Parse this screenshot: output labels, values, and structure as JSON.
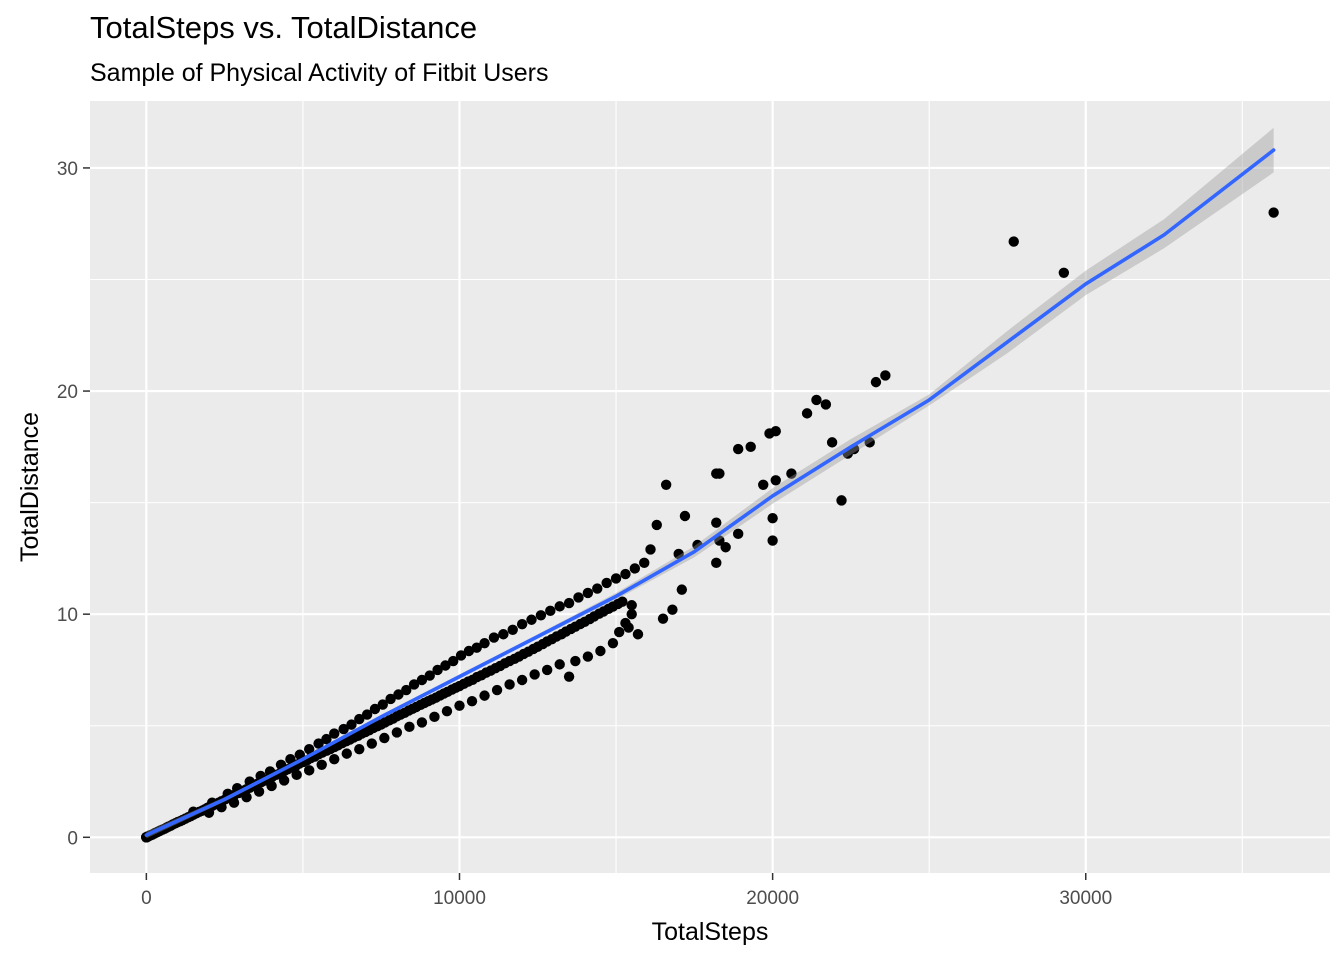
{
  "chart_data": {
    "type": "scatter",
    "title": "TotalSteps vs. TotalDistance",
    "subtitle": "Sample of Physical Activity of Fitbit Users",
    "xlabel": "TotalSteps",
    "ylabel": "TotalDistance",
    "xlim": [
      -1800,
      37800
    ],
    "ylim": [
      -1.6,
      33.0
    ],
    "x_ticks": [
      0,
      10000,
      20000,
      30000
    ],
    "x_tick_labels": [
      "0",
      "10000",
      "20000",
      "30000"
    ],
    "y_ticks": [
      0,
      10,
      20,
      30
    ],
    "y_tick_labels": [
      "0",
      "10",
      "20",
      "30"
    ],
    "grid": true,
    "legend": "none",
    "colors": {
      "panel_background": "#EBEBEB",
      "grid": "#FFFFFF",
      "points": "#000000",
      "smooth_line": "#3366FF",
      "confidence_band": "#999999",
      "tick_labels": "#4D4D4D"
    },
    "series": [
      {
        "type": "scatter",
        "points": [
          [
            0,
            0
          ],
          [
            0,
            0
          ],
          [
            0,
            0
          ],
          [
            0,
            0
          ],
          [
            0,
            0
          ],
          [
            0,
            0
          ],
          [
            0,
            0
          ],
          [
            0,
            0
          ],
          [
            4,
            0
          ],
          [
            8,
            0.01
          ],
          [
            15,
            0.01
          ],
          [
            29,
            0.02
          ],
          [
            36,
            0.03
          ],
          [
            42,
            0.03
          ],
          [
            58,
            0.04
          ],
          [
            98,
            0.07
          ],
          [
            111,
            0.08
          ],
          [
            152,
            0.1
          ],
          [
            200,
            0.13
          ],
          [
            243,
            0.16
          ],
          [
            266,
            0.18
          ],
          [
            300,
            0.2
          ],
          [
            356,
            0.24
          ],
          [
            403,
            0.27
          ],
          [
            445,
            0.3
          ],
          [
            511,
            0.34
          ],
          [
            580,
            0.38
          ],
          [
            655,
            0.44
          ],
          [
            712,
            0.48
          ],
          [
            780,
            0.52
          ],
          [
            852,
            0.58
          ],
          [
            930,
            0.63
          ],
          [
            1001,
            0.68
          ],
          [
            1080,
            0.72
          ],
          [
            1160,
            0.78
          ],
          [
            1250,
            0.84
          ],
          [
            1340,
            0.9
          ],
          [
            1420,
            0.95
          ],
          [
            1510,
            1.02
          ],
          [
            1600,
            1.08
          ],
          [
            1690,
            1.14
          ],
          [
            1780,
            1.19
          ],
          [
            1860,
            1.25
          ],
          [
            1950,
            1.32
          ],
          [
            2030,
            1.38
          ],
          [
            2120,
            1.42
          ],
          [
            2200,
            1.48
          ],
          [
            2310,
            1.55
          ],
          [
            2400,
            1.62
          ],
          [
            2520,
            1.7
          ],
          [
            2610,
            1.78
          ],
          [
            2700,
            1.82
          ],
          [
            2810,
            1.9
          ],
          [
            2950,
            1.99
          ],
          [
            3080,
            2.08
          ],
          [
            3190,
            2.15
          ],
          [
            3300,
            2.22
          ],
          [
            3420,
            2.3
          ],
          [
            3550,
            2.4
          ],
          [
            3680,
            2.48
          ],
          [
            3790,
            2.55
          ],
          [
            3900,
            2.62
          ],
          [
            4010,
            2.7
          ],
          [
            4150,
            2.8
          ],
          [
            4280,
            2.88
          ],
          [
            4400,
            2.97
          ],
          [
            4520,
            3.05
          ],
          [
            4650,
            3.13
          ],
          [
            4770,
            3.2
          ],
          [
            4880,
            3.3
          ],
          [
            5010,
            3.38
          ],
          [
            5130,
            3.45
          ],
          [
            5250,
            3.55
          ],
          [
            5380,
            3.62
          ],
          [
            5500,
            3.72
          ],
          [
            5620,
            3.8
          ],
          [
            5760,
            3.88
          ],
          [
            5880,
            3.96
          ],
          [
            6010,
            4.05
          ],
          [
            6120,
            4.12
          ],
          [
            6250,
            4.22
          ],
          [
            6380,
            4.3
          ],
          [
            6500,
            4.38
          ],
          [
            6620,
            4.47
          ],
          [
            6760,
            4.55
          ],
          [
            6880,
            4.65
          ],
          [
            7000,
            4.72
          ],
          [
            7120,
            4.8
          ],
          [
            7250,
            4.9
          ],
          [
            7380,
            4.98
          ],
          [
            7500,
            5.06
          ],
          [
            7620,
            5.15
          ],
          [
            7760,
            5.24
          ],
          [
            7880,
            5.32
          ],
          [
            8000,
            5.42
          ],
          [
            8120,
            5.5
          ],
          [
            8250,
            5.58
          ],
          [
            8380,
            5.68
          ],
          [
            8500,
            5.76
          ],
          [
            8620,
            5.84
          ],
          [
            8760,
            5.94
          ],
          [
            8880,
            6.02
          ],
          [
            9000,
            6.1
          ],
          [
            9120,
            6.18
          ],
          [
            9250,
            6.26
          ],
          [
            9380,
            6.36
          ],
          [
            9500,
            6.44
          ],
          [
            9620,
            6.52
          ],
          [
            9760,
            6.62
          ],
          [
            9880,
            6.7
          ],
          [
            10000,
            6.78
          ],
          [
            10140,
            6.88
          ],
          [
            10280,
            6.98
          ],
          [
            10420,
            7.06
          ],
          [
            10560,
            7.18
          ],
          [
            10700,
            7.26
          ],
          [
            10850,
            7.38
          ],
          [
            11000,
            7.47
          ],
          [
            11150,
            7.58
          ],
          [
            11300,
            7.68
          ],
          [
            11450,
            7.8
          ],
          [
            11600,
            7.9
          ],
          [
            11760,
            8.0
          ],
          [
            11900,
            8.1
          ],
          [
            12050,
            8.22
          ],
          [
            12200,
            8.32
          ],
          [
            12360,
            8.44
          ],
          [
            12500,
            8.54
          ],
          [
            12660,
            8.66
          ],
          [
            12800,
            8.78
          ],
          [
            12950,
            8.88
          ],
          [
            13100,
            9.0
          ],
          [
            13260,
            9.1
          ],
          [
            13400,
            9.22
          ],
          [
            13560,
            9.34
          ],
          [
            13700,
            9.44
          ],
          [
            13860,
            9.56
          ],
          [
            14000,
            9.66
          ],
          [
            14160,
            9.78
          ],
          [
            14300,
            9.9
          ],
          [
            14460,
            10.02
          ],
          [
            14600,
            10.12
          ],
          [
            14760,
            10.24
          ],
          [
            14900,
            10.34
          ],
          [
            15060,
            10.46
          ],
          [
            15200,
            10.56
          ],
          [
            1500,
            1.15
          ],
          [
            2100,
            1.55
          ],
          [
            2600,
            1.95
          ],
          [
            2900,
            2.2
          ],
          [
            3300,
            2.5
          ],
          [
            3650,
            2.75
          ],
          [
            3950,
            2.95
          ],
          [
            4300,
            3.25
          ],
          [
            4600,
            3.5
          ],
          [
            4900,
            3.7
          ],
          [
            5200,
            3.95
          ],
          [
            5500,
            4.2
          ],
          [
            5750,
            4.4
          ],
          [
            6000,
            4.65
          ],
          [
            6300,
            4.85
          ],
          [
            6550,
            5.05
          ],
          [
            6800,
            5.3
          ],
          [
            7050,
            5.5
          ],
          [
            7300,
            5.75
          ],
          [
            7550,
            5.95
          ],
          [
            7800,
            6.2
          ],
          [
            8050,
            6.4
          ],
          [
            8300,
            6.6
          ],
          [
            8550,
            6.85
          ],
          [
            8800,
            7.05
          ],
          [
            9050,
            7.25
          ],
          [
            9300,
            7.5
          ],
          [
            9550,
            7.7
          ],
          [
            9800,
            7.9
          ],
          [
            10050,
            8.15
          ],
          [
            10300,
            8.35
          ],
          [
            10550,
            8.5
          ],
          [
            10800,
            8.7
          ],
          [
            11100,
            8.95
          ],
          [
            11400,
            9.1
          ],
          [
            11700,
            9.3
          ],
          [
            12000,
            9.55
          ],
          [
            12300,
            9.75
          ],
          [
            12600,
            9.95
          ],
          [
            12900,
            10.15
          ],
          [
            13200,
            10.35
          ],
          [
            13500,
            10.5
          ],
          [
            13800,
            10.75
          ],
          [
            14100,
            10.95
          ],
          [
            14400,
            11.15
          ],
          [
            14700,
            11.4
          ],
          [
            15000,
            11.6
          ],
          [
            15300,
            11.8
          ],
          [
            15600,
            12.05
          ],
          [
            15900,
            12.3
          ],
          [
            16100,
            12.9
          ],
          [
            16300,
            14.0
          ],
          [
            16600,
            15.8
          ],
          [
            17200,
            14.4
          ],
          [
            2000,
            1.1
          ],
          [
            2400,
            1.35
          ],
          [
            2800,
            1.55
          ],
          [
            3200,
            1.8
          ],
          [
            3600,
            2.05
          ],
          [
            4000,
            2.3
          ],
          [
            4400,
            2.55
          ],
          [
            4800,
            2.8
          ],
          [
            5200,
            3.0
          ],
          [
            5600,
            3.25
          ],
          [
            6000,
            3.5
          ],
          [
            6400,
            3.75
          ],
          [
            6800,
            3.95
          ],
          [
            7200,
            4.2
          ],
          [
            7600,
            4.45
          ],
          [
            8000,
            4.7
          ],
          [
            8400,
            4.95
          ],
          [
            8800,
            5.15
          ],
          [
            9200,
            5.4
          ],
          [
            9600,
            5.65
          ],
          [
            10000,
            5.9
          ],
          [
            10400,
            6.1
          ],
          [
            10800,
            6.35
          ],
          [
            11200,
            6.6
          ],
          [
            11600,
            6.85
          ],
          [
            12000,
            7.05
          ],
          [
            12400,
            7.3
          ],
          [
            12800,
            7.5
          ],
          [
            13200,
            7.75
          ],
          [
            13500,
            7.2
          ],
          [
            13700,
            7.9
          ],
          [
            14100,
            8.1
          ],
          [
            14500,
            8.35
          ],
          [
            14900,
            8.7
          ],
          [
            15100,
            9.2
          ],
          [
            15300,
            9.6
          ],
          [
            15500,
            10.0
          ],
          [
            15500,
            10.4
          ],
          [
            15400,
            9.4
          ],
          [
            15700,
            9.1
          ],
          [
            16500,
            9.8
          ],
          [
            16800,
            10.2
          ],
          [
            17100,
            11.1
          ],
          [
            17000,
            12.7
          ],
          [
            17600,
            13.1
          ],
          [
            18200,
            12.3
          ],
          [
            18300,
            13.3
          ],
          [
            18500,
            13.0
          ],
          [
            18900,
            13.6
          ],
          [
            18200,
            14.1
          ],
          [
            18200,
            16.3
          ],
          [
            18300,
            16.3
          ],
          [
            18900,
            17.4
          ],
          [
            19300,
            17.5
          ],
          [
            19700,
            15.8
          ],
          [
            20000,
            14.3
          ],
          [
            20000,
            13.3
          ],
          [
            20100,
            16.0
          ],
          [
            20600,
            16.3
          ],
          [
            19900,
            18.1
          ],
          [
            20100,
            18.2
          ],
          [
            21100,
            19.0
          ],
          [
            21400,
            19.6
          ],
          [
            21700,
            19.4
          ],
          [
            21900,
            17.7
          ],
          [
            22200,
            15.1
          ],
          [
            22400,
            17.2
          ],
          [
            22600,
            17.4
          ],
          [
            23100,
            17.7
          ],
          [
            23300,
            20.4
          ],
          [
            23600,
            20.7
          ],
          [
            27700,
            26.7
          ],
          [
            29300,
            25.3
          ],
          [
            36000,
            28.0
          ]
        ]
      },
      {
        "type": "smooth",
        "method": "loess",
        "line": [
          [
            0,
            0.1
          ],
          [
            2500,
            1.7
          ],
          [
            5000,
            3.5
          ],
          [
            7500,
            5.4
          ],
          [
            10000,
            7.2
          ],
          [
            12500,
            9.0
          ],
          [
            15000,
            10.8
          ],
          [
            17500,
            12.8
          ],
          [
            20000,
            15.3
          ],
          [
            22500,
            17.5
          ],
          [
            25000,
            19.6
          ],
          [
            27500,
            22.2
          ],
          [
            30000,
            24.8
          ],
          [
            32500,
            27.0
          ],
          [
            36000,
            30.8
          ]
        ],
        "band": [
          [
            0,
            -0.05,
            0.25
          ],
          [
            2500,
            1.6,
            1.8
          ],
          [
            5000,
            3.42,
            3.58
          ],
          [
            7500,
            5.32,
            5.48
          ],
          [
            10000,
            7.1,
            7.3
          ],
          [
            12500,
            8.9,
            9.1
          ],
          [
            15000,
            10.65,
            10.95
          ],
          [
            17500,
            12.55,
            13.05
          ],
          [
            20000,
            14.95,
            15.65
          ],
          [
            22500,
            17.15,
            17.85
          ],
          [
            25000,
            19.35,
            19.85
          ],
          [
            27500,
            21.7,
            22.7
          ],
          [
            30000,
            24.3,
            25.4
          ],
          [
            32500,
            26.4,
            27.7
          ],
          [
            36000,
            29.8,
            31.8
          ]
        ]
      }
    ]
  }
}
